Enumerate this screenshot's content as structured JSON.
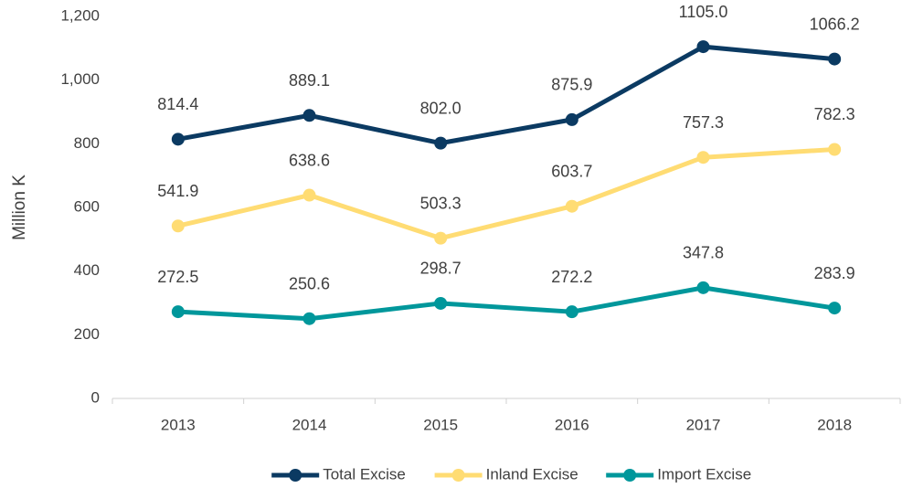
{
  "chart_data": {
    "type": "line",
    "y_label": "Million K",
    "categories": [
      "2013",
      "2014",
      "2015",
      "2016",
      "2017",
      "2018"
    ],
    "series": [
      {
        "name": "Total Excise",
        "color": "#0b3a62",
        "values": [
          814.4,
          889.1,
          802.0,
          875.9,
          1105.0,
          1066.2
        ],
        "value_labels": [
          "814.4",
          "889.1",
          "802.0",
          "875.9",
          "1105.0",
          "1066.2"
        ]
      },
      {
        "name": "Inland Excise",
        "color": "#ffdc73",
        "values": [
          541.9,
          638.6,
          503.3,
          603.7,
          757.3,
          782.3
        ],
        "value_labels": [
          "541.9",
          "638.6",
          "503.3",
          "603.7",
          "757.3",
          "782.3"
        ]
      },
      {
        "name": "Import Excise",
        "color": "#00979b",
        "values": [
          272.5,
          250.6,
          298.7,
          272.2,
          347.8,
          283.9
        ],
        "value_labels": [
          "272.5",
          "250.6",
          "298.7",
          "272.2",
          "347.8",
          "283.9"
        ]
      }
    ],
    "ylim": [
      0,
      1200
    ],
    "yticks": [
      0,
      200,
      400,
      600,
      800,
      {
        "value": 1000,
        "label": "1,000"
      },
      {
        "value": 1200,
        "label": "1,200"
      }
    ],
    "grid": false,
    "legend": "bottom"
  }
}
